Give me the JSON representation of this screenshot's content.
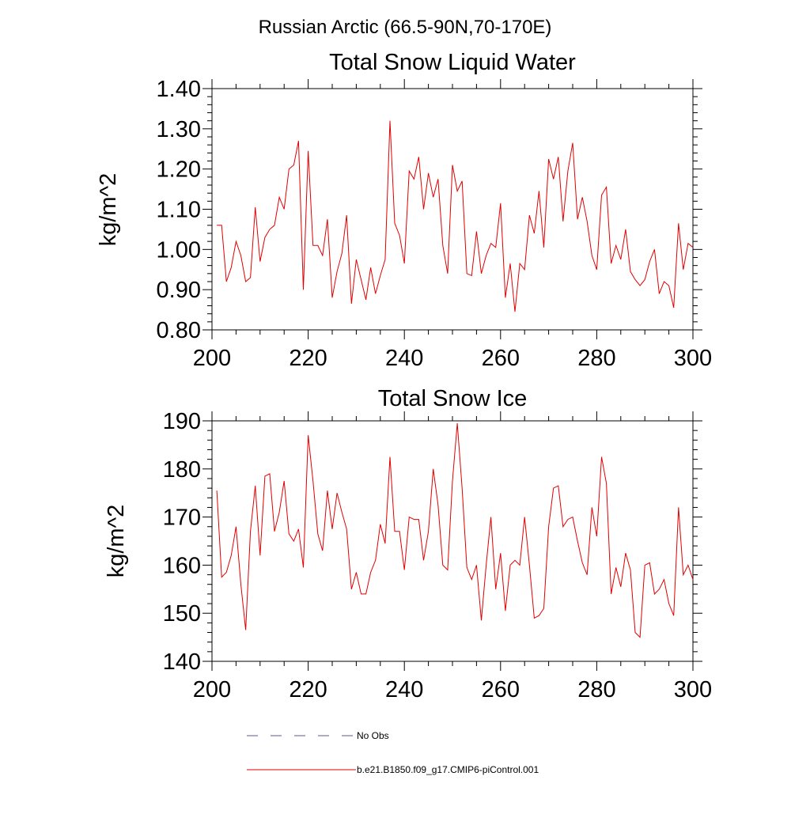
{
  "figure": {
    "suptitle": "Russian Arctic (66.5-90N,70-170E)"
  },
  "legend": {
    "placement": "bottom",
    "entries": [
      {
        "label": "No Obs",
        "color": "#5a5a8c",
        "style": "dashed"
      },
      {
        "label": "b.e21.B1850.f09_g17.CMIP6-piControl.001",
        "color": "#e00000",
        "style": "solid"
      }
    ]
  },
  "chart_data": [
    {
      "type": "line",
      "title": "Total Snow Liquid Water",
      "xlabel": "",
      "ylabel": "kg/m^2",
      "xlim": [
        200,
        300
      ],
      "ylim": [
        0.8,
        1.4
      ],
      "xticks": [
        "200",
        "220",
        "240",
        "260",
        "280",
        "300"
      ],
      "yticks": [
        "0.80",
        "0.90",
        "1.00",
        "1.10",
        "1.20",
        "1.30",
        "1.40"
      ],
      "grid": false,
      "series": [
        {
          "name": "b.e21.B1850.f09_g17.CMIP6-piControl.001",
          "color": "#e00000",
          "x": [
            201,
            202,
            203,
            204,
            205,
            206,
            207,
            208,
            209,
            210,
            211,
            212,
            213,
            214,
            215,
            216,
            217,
            218,
            219,
            220,
            221,
            222,
            223,
            224,
            225,
            226,
            227,
            228,
            229,
            230,
            231,
            232,
            233,
            234,
            235,
            236,
            237,
            238,
            239,
            240,
            241,
            242,
            243,
            244,
            245,
            246,
            247,
            248,
            249,
            250,
            251,
            252,
            253,
            254,
            255,
            256,
            257,
            258,
            259,
            260,
            261,
            262,
            263,
            264,
            265,
            266,
            267,
            268,
            269,
            270,
            271,
            272,
            273,
            274,
            275,
            276,
            277,
            278,
            279,
            280,
            281,
            282,
            283,
            284,
            285,
            286,
            287,
            288,
            289,
            290,
            291,
            292,
            293,
            294,
            295,
            296,
            297,
            298,
            299,
            300
          ],
          "values": [
            1.06,
            1.06,
            0.92,
            0.955,
            1.02,
            0.985,
            0.92,
            0.93,
            1.105,
            0.97,
            1.03,
            1.05,
            1.06,
            1.13,
            1.1,
            1.2,
            1.21,
            1.27,
            0.9,
            1.245,
            1.01,
            1.01,
            0.985,
            1.075,
            0.88,
            0.945,
            0.99,
            1.085,
            0.865,
            0.975,
            0.925,
            0.875,
            0.955,
            0.89,
            0.935,
            0.975,
            1.32,
            1.065,
            1.035,
            0.965,
            1.195,
            1.175,
            1.23,
            1.1,
            1.19,
            1.13,
            1.175,
            1.01,
            0.94,
            1.21,
            1.145,
            1.17,
            0.94,
            0.935,
            1.045,
            0.94,
            0.985,
            1.015,
            1.005,
            1.115,
            0.88,
            0.965,
            0.845,
            0.965,
            0.95,
            1.085,
            1.04,
            1.145,
            1.005,
            1.225,
            1.175,
            1.23,
            1.07,
            1.195,
            1.265,
            1.075,
            1.13,
            1.07,
            0.985,
            0.95,
            1.135,
            1.155,
            0.965,
            1.01,
            0.975,
            1.05,
            0.945,
            0.925,
            0.91,
            0.925,
            0.97,
            1.0,
            0.89,
            0.92,
            0.91,
            0.855,
            1.065,
            0.95,
            1.015,
            1.005
          ]
        }
      ]
    },
    {
      "type": "line",
      "title": "Total Snow Ice",
      "xlabel": "",
      "ylabel": "kg/m^2",
      "xlim": [
        200,
        300
      ],
      "ylim": [
        140,
        190
      ],
      "xticks": [
        "200",
        "220",
        "240",
        "260",
        "280",
        "300"
      ],
      "yticks": [
        "140",
        "150",
        "160",
        "170",
        "180",
        "190"
      ],
      "grid": false,
      "series": [
        {
          "name": "b.e21.B1850.f09_g17.CMIP6-piControl.001",
          "color": "#e00000",
          "x": [
            201,
            202,
            203,
            204,
            205,
            206,
            207,
            208,
            209,
            210,
            211,
            212,
            213,
            214,
            215,
            216,
            217,
            218,
            219,
            220,
            221,
            222,
            223,
            224,
            225,
            226,
            227,
            228,
            229,
            230,
            231,
            232,
            233,
            234,
            235,
            236,
            237,
            238,
            239,
            240,
            241,
            242,
            243,
            244,
            245,
            246,
            247,
            248,
            249,
            250,
            251,
            252,
            253,
            254,
            255,
            256,
            257,
            258,
            259,
            260,
            261,
            262,
            263,
            264,
            265,
            266,
            267,
            268,
            269,
            270,
            271,
            272,
            273,
            274,
            275,
            276,
            277,
            278,
            279,
            280,
            281,
            282,
            283,
            284,
            285,
            286,
            287,
            288,
            289,
            290,
            291,
            292,
            293,
            294,
            295,
            296,
            297,
            298,
            299,
            300
          ],
          "values": [
            175.5,
            157.5,
            158.5,
            162.0,
            168.0,
            156.0,
            146.5,
            167.0,
            176.5,
            162.0,
            178.5,
            179.0,
            167.0,
            171.0,
            177.5,
            166.5,
            165.0,
            167.5,
            159.5,
            187.0,
            177.5,
            166.5,
            163.0,
            175.5,
            167.5,
            175.0,
            171.0,
            167.5,
            155.0,
            158.5,
            154.0,
            154.0,
            158.5,
            161.0,
            168.5,
            164.5,
            182.5,
            167.0,
            167.0,
            159.0,
            170.0,
            169.5,
            169.5,
            161.0,
            167.0,
            180.0,
            172.5,
            160.0,
            159.0,
            177.5,
            189.5,
            176.0,
            159.5,
            157.0,
            160.0,
            148.5,
            160.0,
            170.0,
            155.0,
            162.5,
            150.5,
            160.0,
            161.0,
            160.0,
            170.0,
            160.0,
            149.0,
            149.5,
            151.0,
            168.0,
            176.0,
            176.5,
            168.0,
            169.5,
            170.0,
            165.0,
            160.5,
            158.0,
            172.0,
            166.0,
            182.5,
            177.0,
            154.0,
            159.5,
            155.5,
            162.5,
            159.0,
            146.0,
            145.0,
            160.0,
            160.5,
            154.0,
            155.0,
            157.0,
            152.0,
            149.5,
            172.0,
            158.0,
            160.0,
            157.0
          ]
        }
      ]
    }
  ]
}
